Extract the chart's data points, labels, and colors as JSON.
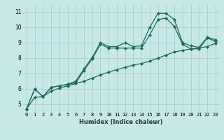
{
  "xlabel": "Humidex (Indice chaleur)",
  "bg_color": "#c8e8e8",
  "grid_color": "#a8d0d0",
  "line_color": "#1a6b5a",
  "xlim": [
    -0.5,
    23.5
  ],
  "ylim": [
    4.5,
    11.5
  ],
  "xticks": [
    0,
    1,
    2,
    3,
    4,
    5,
    6,
    7,
    8,
    9,
    10,
    11,
    12,
    13,
    14,
    15,
    16,
    17,
    18,
    19,
    20,
    21,
    22,
    23
  ],
  "yticks": [
    5,
    6,
    7,
    8,
    9,
    10,
    11
  ],
  "line1": [
    4.7,
    6.0,
    5.5,
    6.1,
    6.2,
    6.3,
    6.5,
    7.3,
    8.05,
    9.0,
    8.75,
    8.75,
    9.0,
    8.75,
    8.8,
    10.0,
    10.9,
    10.9,
    10.5,
    9.0,
    8.8,
    8.7,
    9.35,
    9.2
  ],
  "line2": [
    4.7,
    6.0,
    5.5,
    6.1,
    6.2,
    6.3,
    6.4,
    7.2,
    7.95,
    8.9,
    8.65,
    8.65,
    8.65,
    8.65,
    8.65,
    9.5,
    10.5,
    10.6,
    10.05,
    8.9,
    8.6,
    8.6,
    9.3,
    9.1
  ],
  "line3": [
    4.7,
    5.45,
    5.5,
    5.85,
    6.05,
    6.2,
    6.35,
    6.5,
    6.7,
    6.9,
    7.1,
    7.25,
    7.4,
    7.55,
    7.65,
    7.8,
    8.0,
    8.2,
    8.4,
    8.5,
    8.6,
    8.65,
    8.75,
    8.95
  ],
  "markersize": 2.5,
  "linewidth": 0.9,
  "xlabel_fontsize": 6.0,
  "tick_fontsize": 5.0
}
